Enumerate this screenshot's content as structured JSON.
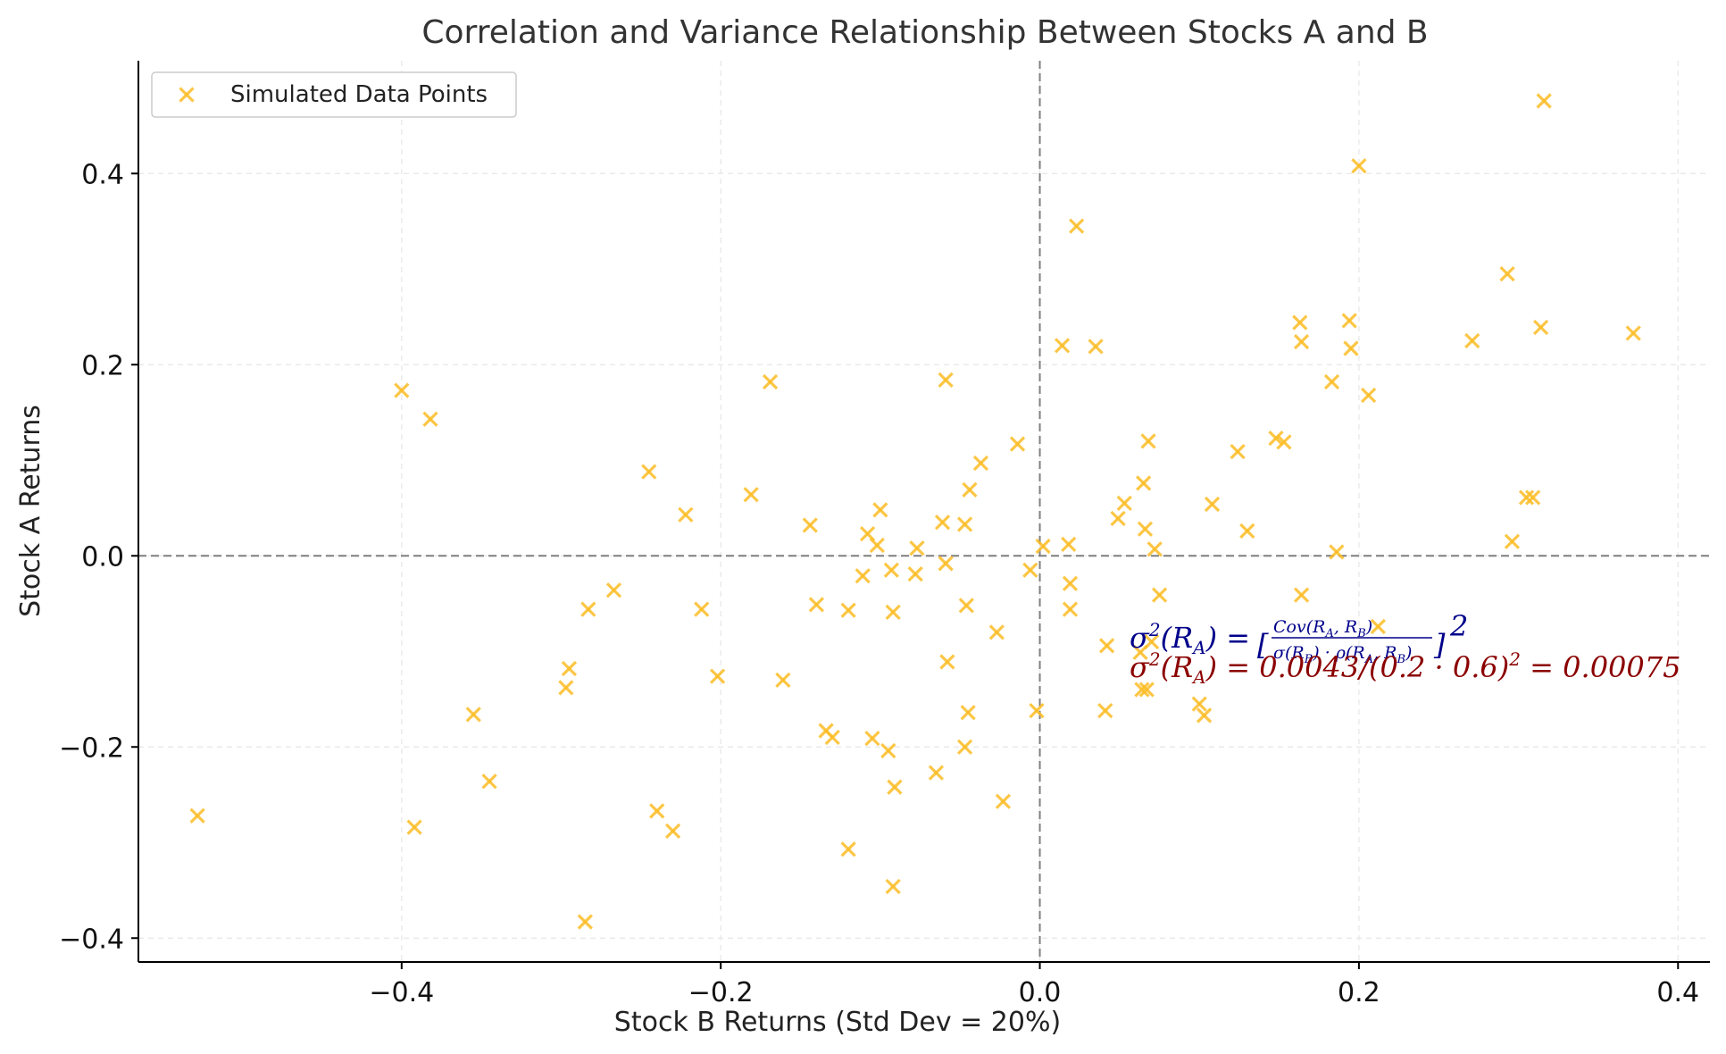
{
  "chart_data": {
    "type": "scatter",
    "title": "Correlation and Variance Relationship Between Stocks A and B",
    "xlabel": "Stock B Returns (Std Dev = 20%)",
    "ylabel": "Stock A Returns",
    "xlim": [
      -0.565,
      0.42
    ],
    "ylim": [
      -0.425,
      0.518
    ],
    "x_ticks": [
      -0.4,
      -0.2,
      0.0,
      0.2,
      0.4
    ],
    "y_ticks": [
      -0.4,
      -0.2,
      0.0,
      0.2,
      0.4
    ],
    "x_tick_labels": [
      "−0.4",
      "−0.2",
      "0.0",
      "0.2",
      "0.4"
    ],
    "y_tick_labels": [
      "−0.4",
      "−0.2",
      "0.0",
      "0.2",
      "0.4"
    ],
    "grid": true,
    "reference_lines": {
      "x": 0.0,
      "y": 0.0
    },
    "legend": {
      "placement": "top-left",
      "entries": [
        "Simulated Data Points"
      ]
    },
    "marker": "x",
    "color": "#fbbc25",
    "series": [
      {
        "name": "Simulated Data Points",
        "points": [
          [
            -0.528,
            -0.272
          ],
          [
            -0.4,
            0.173
          ],
          [
            -0.382,
            0.143
          ],
          [
            -0.392,
            -0.284
          ],
          [
            -0.355,
            -0.166
          ],
          [
            -0.345,
            -0.236
          ],
          [
            -0.295,
            -0.118
          ],
          [
            -0.297,
            -0.138
          ],
          [
            -0.283,
            -0.056
          ],
          [
            -0.285,
            -0.383
          ],
          [
            -0.267,
            -0.036
          ],
          [
            -0.245,
            0.088
          ],
          [
            -0.24,
            -0.267
          ],
          [
            -0.23,
            -0.288
          ],
          [
            -0.222,
            0.043
          ],
          [
            -0.212,
            -0.056
          ],
          [
            -0.202,
            -0.126
          ],
          [
            -0.181,
            0.064
          ],
          [
            -0.169,
            0.182
          ],
          [
            -0.161,
            -0.13
          ],
          [
            -0.144,
            0.032
          ],
          [
            -0.14,
            -0.051
          ],
          [
            -0.134,
            -0.183
          ],
          [
            -0.13,
            -0.19
          ],
          [
            -0.12,
            -0.057
          ],
          [
            -0.12,
            -0.307
          ],
          [
            -0.111,
            -0.021
          ],
          [
            -0.108,
            0.023
          ],
          [
            -0.105,
            -0.191
          ],
          [
            -0.102,
            0.011
          ],
          [
            -0.1,
            0.048
          ],
          [
            -0.095,
            -0.204
          ],
          [
            -0.093,
            -0.015
          ],
          [
            -0.092,
            -0.059
          ],
          [
            -0.091,
            -0.242
          ],
          [
            -0.092,
            -0.346
          ],
          [
            -0.077,
            0.008
          ],
          [
            -0.078,
            -0.019
          ],
          [
            -0.065,
            -0.227
          ],
          [
            -0.061,
            0.035
          ],
          [
            -0.059,
            0.184
          ],
          [
            -0.059,
            -0.008
          ],
          [
            -0.058,
            -0.111
          ],
          [
            -0.047,
            0.033
          ],
          [
            -0.046,
            -0.052
          ],
          [
            -0.047,
            -0.2
          ],
          [
            -0.045,
            -0.164
          ],
          [
            -0.044,
            0.069
          ],
          [
            -0.037,
            0.097
          ],
          [
            -0.027,
            -0.08
          ],
          [
            -0.023,
            -0.257
          ],
          [
            -0.014,
            0.117
          ],
          [
            -0.006,
            -0.015
          ],
          [
            -0.002,
            -0.162
          ],
          [
            0.002,
            0.01
          ],
          [
            0.014,
            0.22
          ],
          [
            0.018,
            0.012
          ],
          [
            0.019,
            -0.029
          ],
          [
            0.019,
            -0.056
          ],
          [
            0.023,
            0.345
          ],
          [
            0.035,
            0.219
          ],
          [
            0.041,
            -0.162
          ],
          [
            0.042,
            -0.094
          ],
          [
            0.049,
            0.039
          ],
          [
            0.053,
            0.055
          ],
          [
            0.063,
            -0.101
          ],
          [
            0.064,
            -0.14
          ],
          [
            0.065,
            0.076
          ],
          [
            0.066,
            0.028
          ],
          [
            0.067,
            -0.14
          ],
          [
            0.068,
            0.12
          ],
          [
            0.07,
            -0.09
          ],
          [
            0.072,
            0.007
          ],
          [
            0.075,
            -0.041
          ],
          [
            0.1,
            -0.155
          ],
          [
            0.103,
            -0.167
          ],
          [
            0.108,
            0.054
          ],
          [
            0.124,
            0.109
          ],
          [
            0.13,
            0.026
          ],
          [
            0.148,
            0.123
          ],
          [
            0.153,
            0.119
          ],
          [
            0.163,
            0.244
          ],
          [
            0.164,
            0.224
          ],
          [
            0.164,
            -0.041
          ],
          [
            0.183,
            0.182
          ],
          [
            0.186,
            0.004
          ],
          [
            0.194,
            0.246
          ],
          [
            0.195,
            0.217
          ],
          [
            0.2,
            0.408
          ],
          [
            0.206,
            0.168
          ],
          [
            0.212,
            -0.074
          ],
          [
            0.271,
            0.225
          ],
          [
            0.293,
            0.295
          ],
          [
            0.296,
            0.015
          ],
          [
            0.305,
            0.061
          ],
          [
            0.309,
            0.061
          ],
          [
            0.314,
            0.239
          ],
          [
            0.316,
            0.476
          ],
          [
            0.372,
            0.233
          ]
        ]
      }
    ],
    "annotations": [
      {
        "text": "σ²(R_A) = [Cov(R_A, R_B) / (σ(R_B) · ρ(R_A, R_B))]²",
        "color": "#00008b"
      },
      {
        "text": "σ²(R_A) = 0.0043/(0.2 · 0.6)² = 0.00075",
        "color": "#8b0000"
      }
    ]
  }
}
